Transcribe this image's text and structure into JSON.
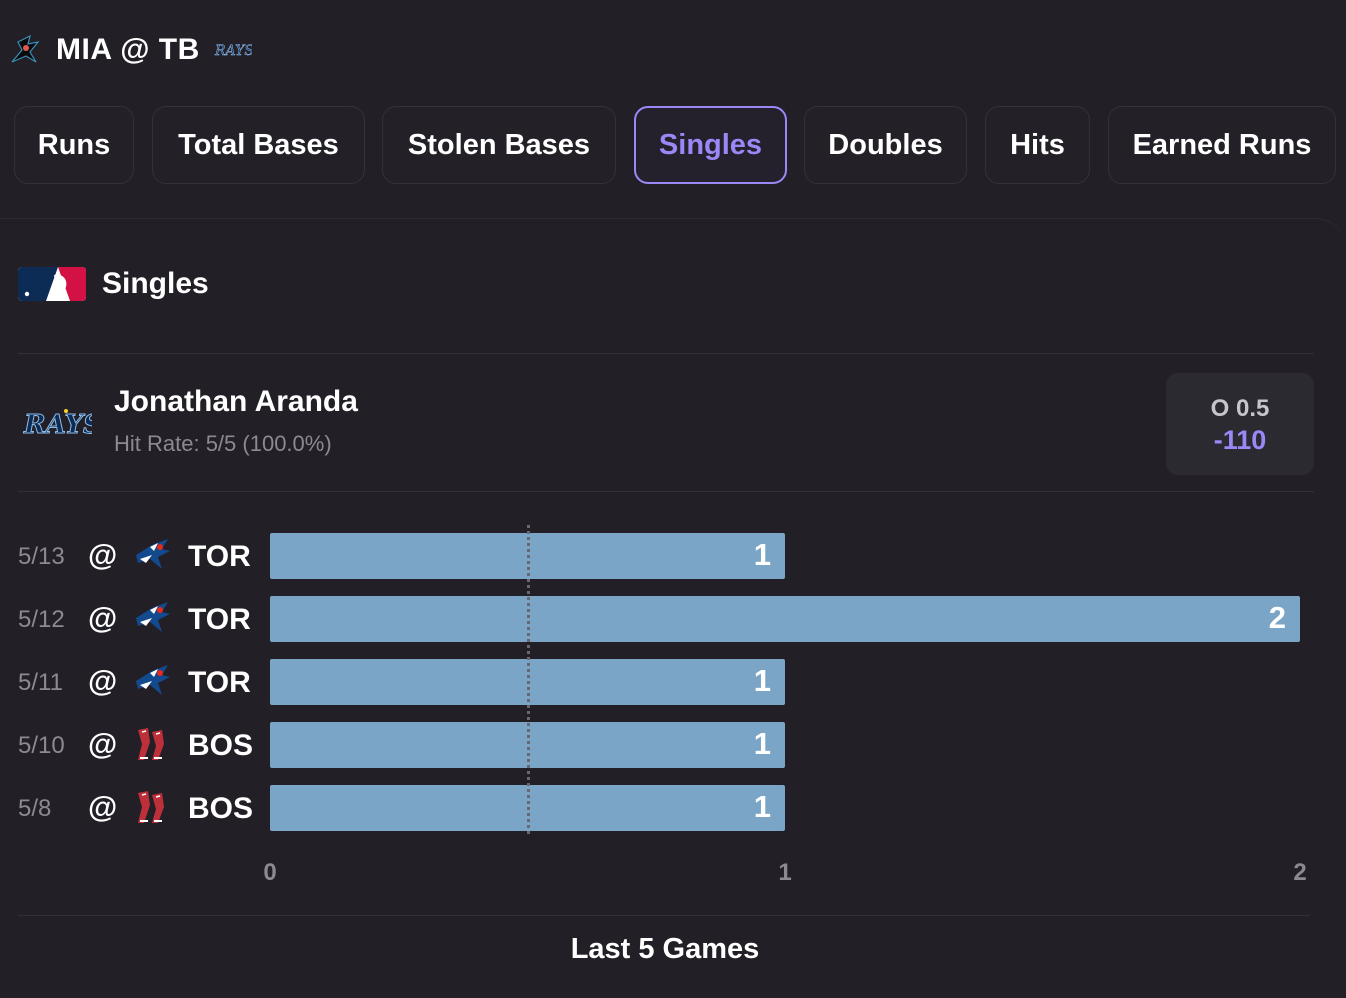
{
  "header": {
    "title": "MIA @ TB"
  },
  "tabs": [
    {
      "label": "Runs",
      "active": false
    },
    {
      "label": "Total Bases",
      "active": false
    },
    {
      "label": "Stolen Bases",
      "active": false
    },
    {
      "label": "Singles",
      "active": true
    },
    {
      "label": "Doubles",
      "active": false
    },
    {
      "label": "Hits",
      "active": false
    },
    {
      "label": "Earned Runs",
      "active": false
    }
  ],
  "section": {
    "title": "Singles"
  },
  "player": {
    "name": "Jonathan Aranda",
    "hit_rate": "Hit Rate: 5/5 (100.0%)",
    "line": "O 0.5",
    "price": "-110"
  },
  "colors": {
    "accent": "#9b87f5",
    "bar": "#7ba5c6",
    "background": "#221f27"
  },
  "chart_data": {
    "type": "bar",
    "orientation": "horizontal",
    "categories": [
      "5/13 @ TOR",
      "5/12 @ TOR",
      "5/11 @ TOR",
      "5/10 @ BOS",
      "5/8 @ BOS"
    ],
    "rows": [
      {
        "date": "5/13",
        "at": "@",
        "opponent": "TOR",
        "logo": "blue-jays-icon",
        "value": 1
      },
      {
        "date": "5/12",
        "at": "@",
        "opponent": "TOR",
        "logo": "blue-jays-icon",
        "value": 2
      },
      {
        "date": "5/11",
        "at": "@",
        "opponent": "TOR",
        "logo": "blue-jays-icon",
        "value": 1
      },
      {
        "date": "5/10",
        "at": "@",
        "opponent": "BOS",
        "logo": "red-sox-icon",
        "value": 1
      },
      {
        "date": "5/8",
        "at": "@",
        "opponent": "BOS",
        "logo": "red-sox-icon",
        "value": 1
      }
    ],
    "values": [
      1,
      2,
      1,
      1,
      1
    ],
    "reference_line": 0.5,
    "xlim": [
      0,
      2
    ],
    "ticks": [
      "0",
      "1",
      "2"
    ],
    "xlabel": "Last 5 Games"
  }
}
